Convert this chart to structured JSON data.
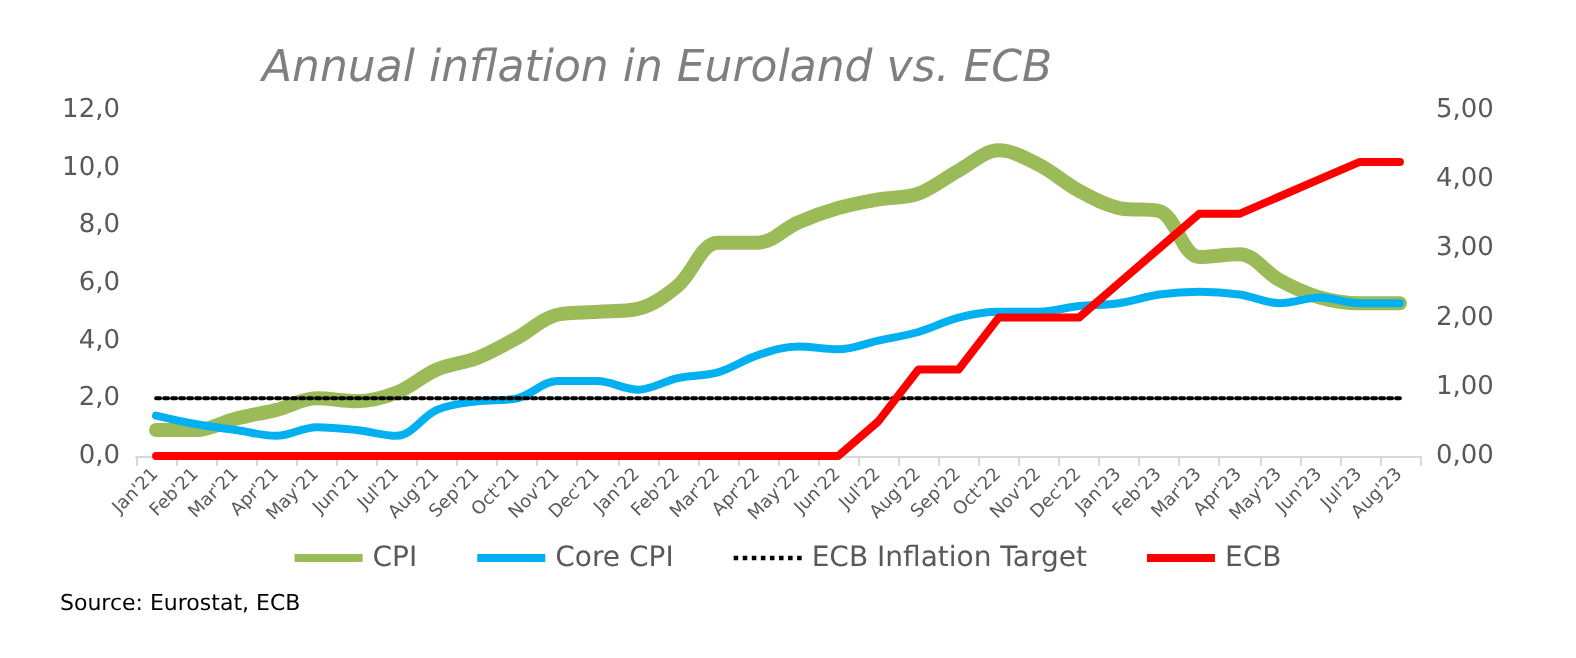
{
  "chart_data": {
    "type": "line",
    "title": "Annual inflation in Euroland vs. ECB",
    "annotations": [
      "Source: Eurostat, ECB"
    ],
    "categories": [
      "Jan'21",
      "Feb'21",
      "Mar'21",
      "Apr'21",
      "May'21",
      "Jun'21",
      "Jul'21",
      "Aug'21",
      "Sep'21",
      "Oct'21",
      "Nov'21",
      "Dec'21",
      "Jan'22",
      "Feb'22",
      "Mar'22",
      "Apr'22",
      "May'22",
      "Jun'22",
      "Jul'22",
      "Aug'22",
      "Sep'22",
      "Oct'22",
      "Nov'22",
      "Dec'22",
      "Jan'23",
      "Feb'23",
      "Mar'23",
      "Apr'23",
      "May'23",
      "Jun'23",
      "Jul'23",
      "Aug'23"
    ],
    "series": [
      {
        "name": "CPI",
        "color": "#9bbb59",
        "line_style": "solid",
        "values": [
          0.9,
          0.9,
          1.3,
          1.6,
          2.0,
          1.9,
          2.2,
          3.0,
          3.4,
          4.1,
          4.9,
          5.0,
          5.1,
          5.9,
          7.4,
          7.4,
          8.1,
          8.6,
          8.9,
          9.1,
          9.9,
          10.6,
          10.1,
          9.2,
          8.6,
          8.5,
          6.9,
          7.0,
          6.1,
          5.5,
          5.3,
          5.3
        ]
      },
      {
        "name": "Core CPI",
        "color": "#00b0f0",
        "line_style": "solid",
        "values": [
          1.4,
          1.1,
          0.9,
          0.7,
          1.0,
          0.9,
          0.7,
          1.6,
          1.9,
          2.0,
          2.6,
          2.6,
          2.3,
          2.7,
          2.9,
          3.5,
          3.8,
          3.7,
          4.0,
          4.3,
          4.8,
          5.0,
          5.0,
          5.2,
          5.3,
          5.6,
          5.7,
          5.6,
          5.3,
          5.5,
          5.3,
          5.3
        ]
      },
      {
        "name": "ECB Inflation Target",
        "color": "#000000",
        "line_style": "dotted",
        "values": [
          2,
          2,
          2,
          2,
          2,
          2,
          2,
          2,
          2,
          2,
          2,
          2,
          2,
          2,
          2,
          2,
          2,
          2,
          2,
          2,
          2,
          2,
          2,
          2,
          2,
          2,
          2,
          2,
          2,
          2,
          2,
          2
        ]
      },
      {
        "name": "ECB",
        "color": "#ff0000",
        "line_style": "solid",
        "axis": "y2",
        "values": [
          0,
          0,
          0,
          0,
          0,
          0,
          0,
          0,
          0,
          0,
          0,
          0,
          0,
          0,
          0,
          0,
          0,
          0,
          0.5,
          1.25,
          1.25,
          2.0,
          2.0,
          2.0,
          2.5,
          3.0,
          3.5,
          3.5,
          3.75,
          4.0,
          4.25,
          4.25
        ]
      }
    ],
    "ylim": [
      0,
      12
    ],
    "yticks": [
      {
        "value": 0,
        "label": "0,0"
      },
      {
        "value": 2,
        "label": "2,0"
      },
      {
        "value": 4,
        "label": "4,0"
      },
      {
        "value": 6,
        "label": "6,0"
      },
      {
        "value": 8,
        "label": "8,0"
      },
      {
        "value": 10,
        "label": "10,0"
      },
      {
        "value": 12,
        "label": "12,0"
      }
    ],
    "y2lim": [
      0,
      5
    ],
    "y2ticks": [
      {
        "value": 0,
        "label": "0,00"
      },
      {
        "value": 1,
        "label": "1,00"
      },
      {
        "value": 2,
        "label": "2,00"
      },
      {
        "value": 3,
        "label": "3,00"
      },
      {
        "value": 4,
        "label": "4,00"
      },
      {
        "value": 5,
        "label": "5,00"
      }
    ],
    "grid": false,
    "legend": "bottom",
    "marker": "none"
  }
}
